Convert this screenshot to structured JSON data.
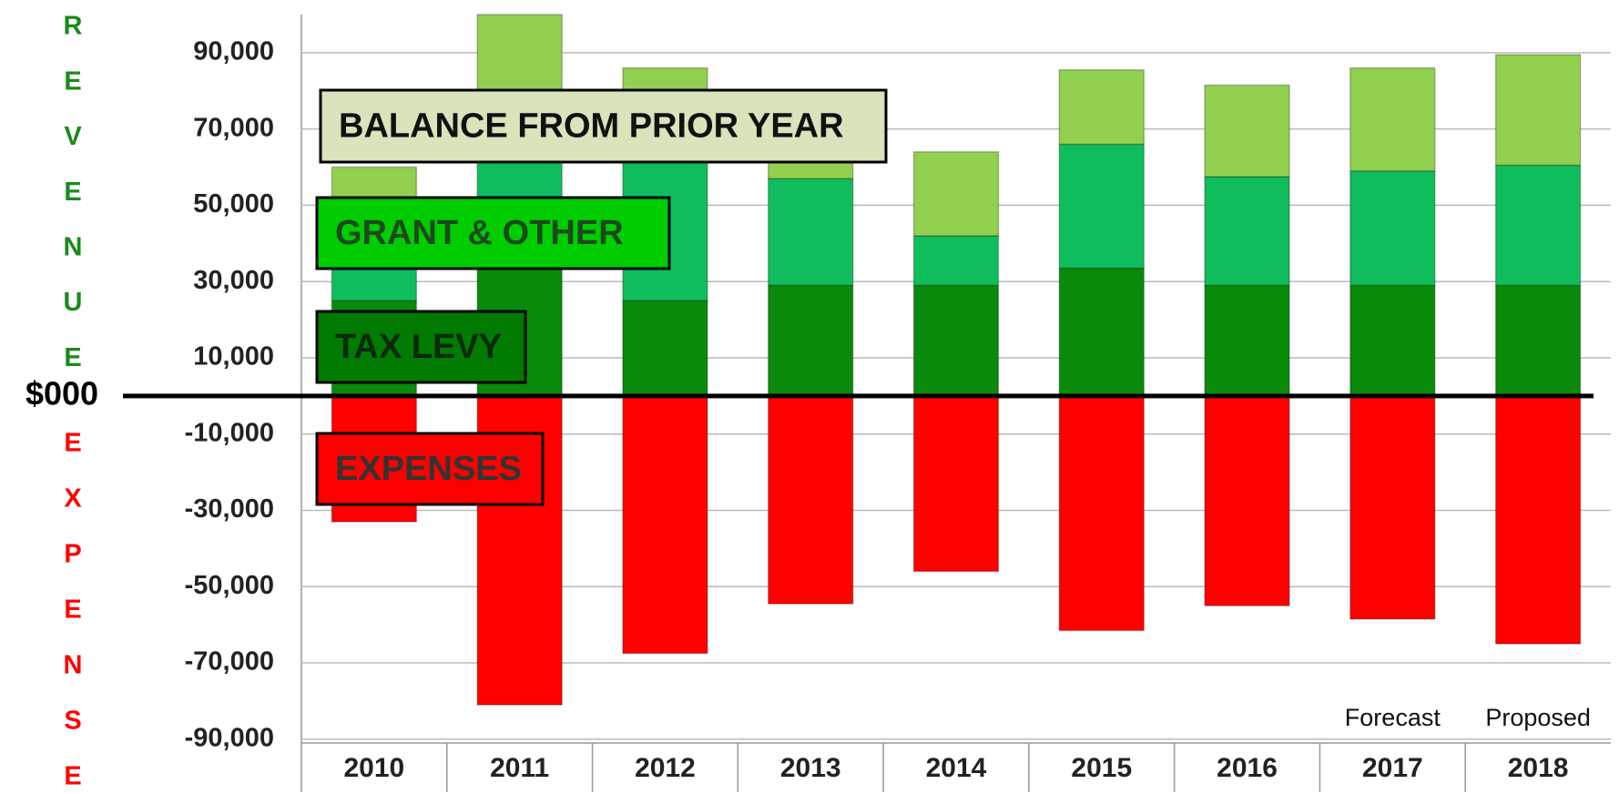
{
  "chart_data": {
    "type": "stacked_bar",
    "categories": [
      "2010",
      "2011",
      "2012",
      "2013",
      "2014",
      "2015",
      "2016",
      "2017",
      "2018"
    ],
    "series": [
      {
        "name": "TAX LEVY",
        "color": "#0a8a0a",
        "legend_color": "#007a00",
        "values": [
          25000,
          35000,
          25000,
          29000,
          29000,
          33500,
          29000,
          29000,
          29000
        ]
      },
      {
        "name": "GRANT & OTHER",
        "color": "#10bd5c",
        "legend_color": "#00cc00",
        "values": [
          15000,
          30000,
          41000,
          28000,
          13000,
          32500,
          28500,
          30000,
          31500
        ]
      },
      {
        "name": "BALANCE FROM PRIOR YEAR",
        "color": "#92d050",
        "legend_color": "#d8e4bc",
        "values": [
          20000,
          35000,
          20000,
          8000,
          22000,
          19500,
          24000,
          27000,
          29000
        ]
      },
      {
        "name": "EXPENSES",
        "color": "#ff0000",
        "legend_color": "#ff0000",
        "values": [
          -33000,
          -81000,
          -67500,
          -54500,
          -46000,
          -61500,
          -55000,
          -58500,
          -65000
        ]
      }
    ],
    "ylim": [
      -91000,
      100000
    ],
    "yticks": [
      {
        "value": 90000,
        "label": "90,000"
      },
      {
        "value": 70000,
        "label": "70,000"
      },
      {
        "value": 50000,
        "label": "50,000"
      },
      {
        "value": 30000,
        "label": "30,000"
      },
      {
        "value": 10000,
        "label": "10,000"
      },
      {
        "value": -10000,
        "label": "-10,000"
      },
      {
        "value": -30000,
        "label": "-30,000"
      },
      {
        "value": -50000,
        "label": "-50,000"
      },
      {
        "value": -70000,
        "label": "-70,000"
      },
      {
        "value": -90000,
        "label": "-90,000"
      }
    ],
    "zero_label": "$000",
    "grid": true,
    "revenue_letters": [
      "R",
      "E",
      "V",
      "E",
      "N",
      "U",
      "E"
    ],
    "expense_letters": [
      "E",
      "X",
      "P",
      "E",
      "N",
      "S",
      "E"
    ],
    "annotations": [
      {
        "text": "Forecast",
        "category": 7
      },
      {
        "text": "Proposed",
        "category": 8
      }
    ]
  }
}
